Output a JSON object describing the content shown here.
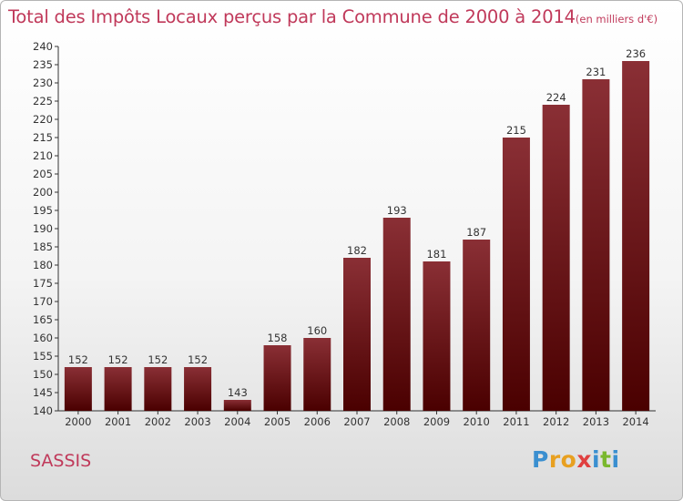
{
  "chart_data": {
    "type": "bar",
    "title": "Total des Impôts Locaux perçus par la Commune de 2000 à 2014",
    "unit": "(en milliers d'€)",
    "categories": [
      "2000",
      "2001",
      "2002",
      "2003",
      "2004",
      "2005",
      "2006",
      "2007",
      "2008",
      "2009",
      "2010",
      "2011",
      "2012",
      "2013",
      "2014"
    ],
    "values": [
      152,
      152,
      152,
      152,
      143,
      158,
      160,
      182,
      193,
      181,
      187,
      215,
      224,
      231,
      236
    ],
    "ylim": [
      140,
      240
    ],
    "ytick_step": 5,
    "xlabel": "",
    "ylabel": "",
    "grid": false,
    "bar_color_top": "#8a2f35",
    "bar_color_bottom": "#4a0000"
  },
  "commune": "SASSIS",
  "brand": {
    "letters": [
      "P",
      "r",
      "o",
      "x",
      "i",
      "t",
      "i"
    ],
    "colors": [
      "#3a8fd0",
      "#e8a020",
      "#e8a020",
      "#e04040",
      "#3a8fd0",
      "#7ab82e",
      "#3a8fd0"
    ]
  }
}
